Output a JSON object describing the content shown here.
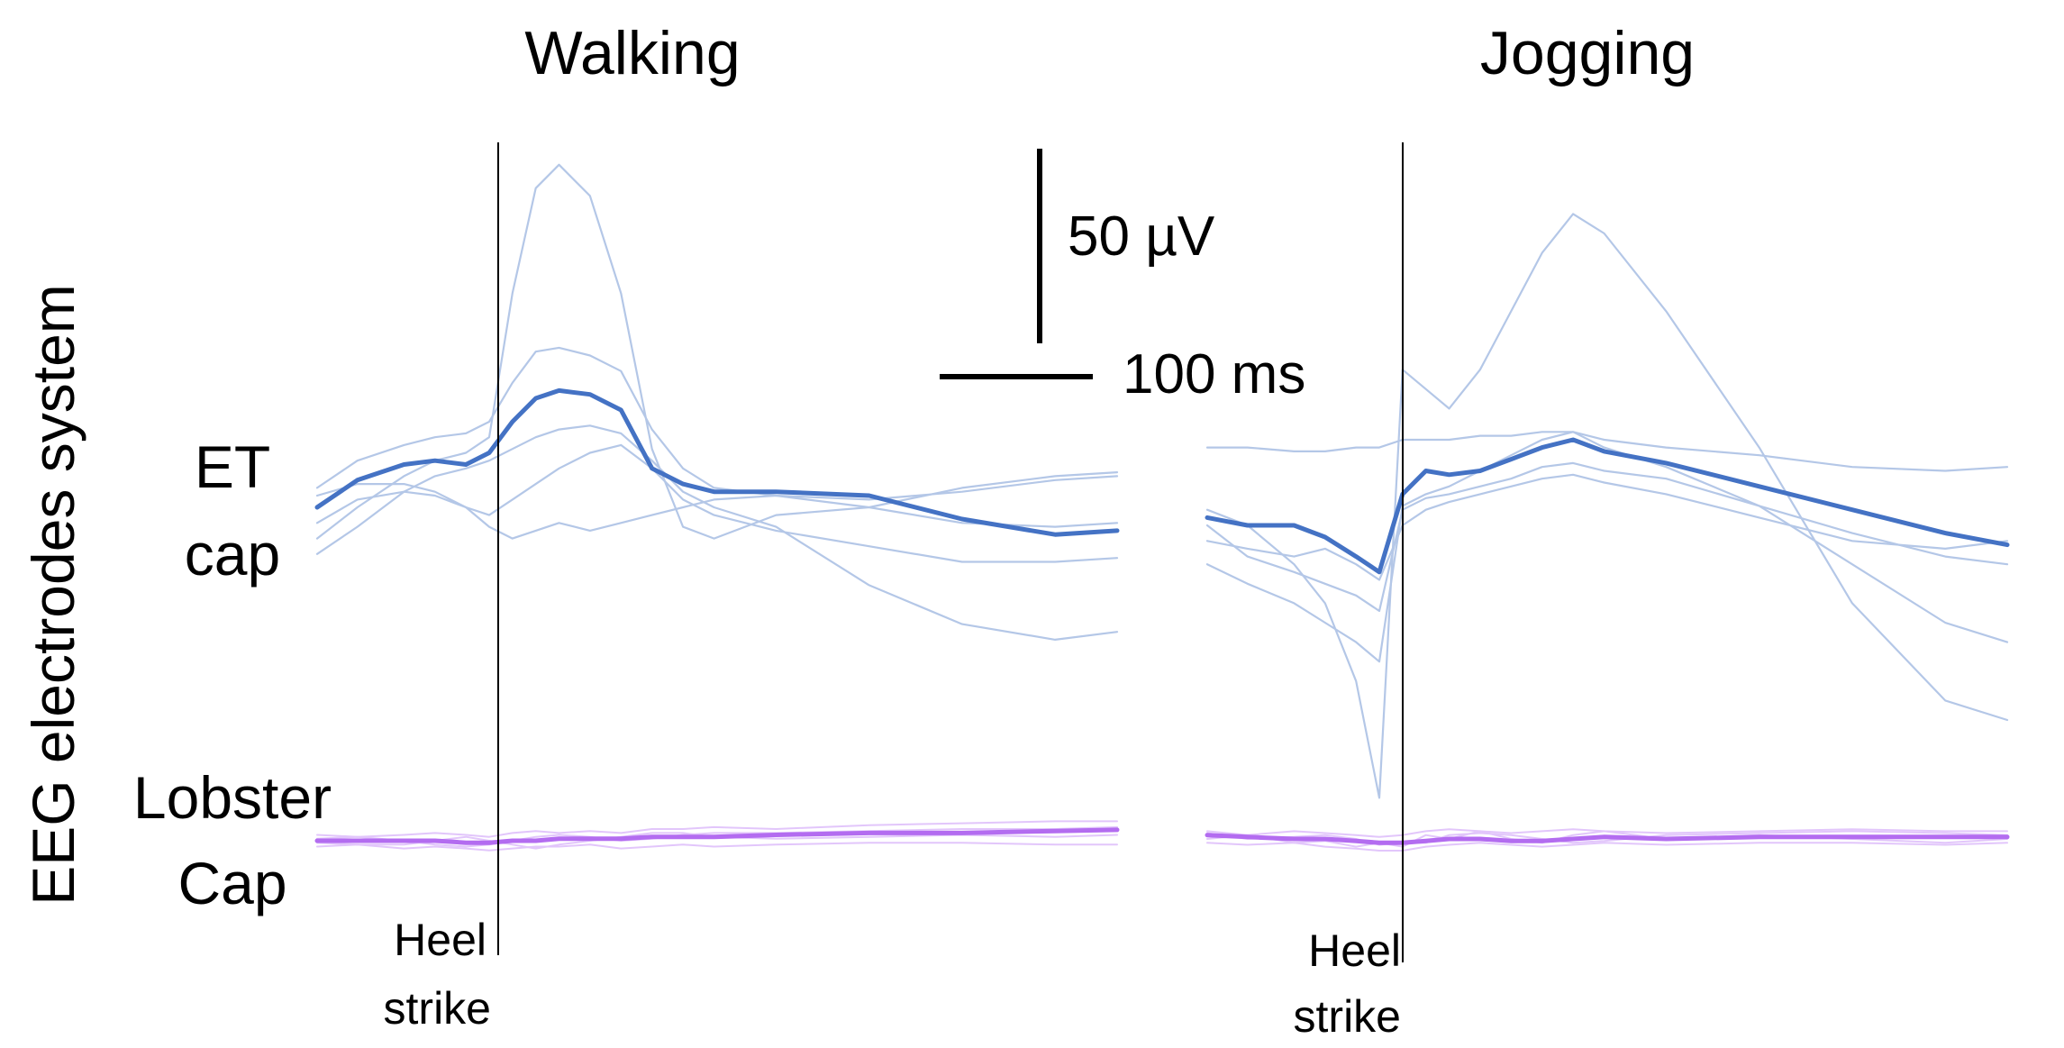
{
  "chart_data": {
    "type": "line",
    "y_axis_label": "EEG electrodes system",
    "row_labels": {
      "et_line1": "ET",
      "et_line2": "cap",
      "lobster_line1": "Lobster",
      "lobster_line2": "Cap"
    },
    "scale_bar": {
      "voltage_label": "50 µV",
      "voltage_uV": 50,
      "time_label": "100 ms",
      "time_ms": 100
    },
    "heel_strike_label": {
      "line1": "Heel",
      "line2": "strike"
    },
    "time_range_ms": [
      -116,
      400
    ],
    "voltage_unit": "µV",
    "colors": {
      "et_mean": "#4472c4",
      "et_trial": "#b4c7e7",
      "lobster_mean": "#b36cf0",
      "lobster_trial": "#e2c6fb",
      "heel_line": "#000000"
    },
    "panels": [
      {
        "title": "Walking",
        "et_cap": {
          "t": [
            -116,
            -90,
            -60,
            -40,
            -20,
            -5,
            10,
            25,
            40,
            60,
            80,
            100,
            120,
            140,
            180,
            240,
            300,
            360,
            400
          ],
          "mean": [
            0,
            7,
            11,
            12,
            11,
            14,
            22,
            28,
            30,
            29,
            25,
            10,
            6,
            4,
            4,
            3,
            -3,
            -7,
            -6
          ],
          "trials": [
            [
              -8,
              0,
              8,
              12,
              14,
              18,
              55,
              82,
              88,
              80,
              55,
              15,
              -5,
              -8,
              -2,
              0,
              5,
              8,
              9
            ],
            [
              5,
              12,
              16,
              18,
              19,
              22,
              32,
              40,
              41,
              39,
              35,
              20,
              10,
              5,
              3,
              2,
              4,
              7,
              8
            ],
            [
              -12,
              -5,
              4,
              8,
              10,
              12,
              15,
              18,
              20,
              21,
              19,
              12,
              4,
              0,
              -5,
              -20,
              -30,
              -34,
              -32
            ],
            [
              3,
              6,
              6,
              4,
              0,
              -2,
              2,
              6,
              10,
              14,
              16,
              10,
              2,
              -2,
              -6,
              -10,
              -14,
              -14,
              -13
            ],
            [
              -4,
              2,
              4,
              3,
              0,
              -5,
              -8,
              -6,
              -4,
              -6,
              -4,
              -2,
              0,
              2,
              3,
              0,
              -4,
              -5,
              -4
            ]
          ]
        },
        "lobster_cap": {
          "mean": [
            0,
            0,
            0,
            0,
            -0.5,
            -0.5,
            0,
            0,
            0.5,
            0.5,
            0.5,
            1,
            1,
            1,
            1.5,
            2,
            2,
            2.5,
            2.8
          ],
          "trials": [
            [
              1.5,
              1,
              1.5,
              2,
              1.5,
              1,
              2,
              2.5,
              2,
              2.5,
              2,
              3,
              3,
              3.5,
              3,
              4,
              4.5,
              5,
              5
            ],
            [
              -1.5,
              -1,
              -2,
              -1.5,
              -2,
              -2.5,
              -2,
              -1.5,
              -1.5,
              -1,
              -2,
              -1.5,
              -1,
              -1.5,
              -1,
              -0.5,
              -0.5,
              -1,
              -1
            ],
            [
              0.5,
              1,
              0,
              -1,
              -1.5,
              -1,
              0,
              1,
              1.5,
              1,
              0,
              0.5,
              1.5,
              2,
              2,
              2.5,
              3,
              3,
              3.5
            ],
            [
              -0.5,
              -1,
              -1,
              0,
              1,
              0,
              -1,
              -2,
              -1,
              0,
              1,
              2,
              2,
              1,
              0.5,
              1,
              1.5,
              1,
              1.5
            ]
          ]
        }
      },
      {
        "title": "Jogging",
        "et_cap": {
          "t": [
            -116,
            -90,
            -60,
            -40,
            -20,
            -5,
            10,
            25,
            40,
            60,
            80,
            100,
            120,
            140,
            180,
            240,
            300,
            360,
            400
          ],
          "mean": [
            2,
            0,
            0,
            -3,
            -8,
            -12,
            8,
            14,
            13,
            14,
            17,
            20,
            22,
            19,
            16,
            10,
            4,
            -2,
            -5
          ],
          "trials": [
            [
              4,
              0,
              -10,
              -20,
              -40,
              -70,
              40,
              35,
              30,
              40,
              55,
              70,
              80,
              75,
              55,
              20,
              -20,
              -45,
              -50
            ],
            [
              20,
              20,
              19,
              19,
              20,
              20,
              22,
              22,
              22,
              23,
              23,
              24,
              24,
              22,
              20,
              18,
              15,
              14,
              15
            ],
            [
              -10,
              -15,
              -20,
              -25,
              -30,
              -35,
              5,
              8,
              10,
              14,
              18,
              22,
              24,
              20,
              15,
              5,
              -10,
              -25,
              -30
            ],
            [
              0,
              -8,
              -12,
              -15,
              -18,
              -22,
              4,
              7,
              8,
              10,
              12,
              15,
              16,
              14,
              12,
              5,
              -2,
              -8,
              -10
            ],
            [
              -4,
              -6,
              -8,
              -6,
              -10,
              -14,
              0,
              4,
              6,
              8,
              10,
              12,
              13,
              11,
              8,
              2,
              -4,
              -6,
              -4
            ]
          ]
        },
        "lobster_cap": {
          "mean": [
            1,
            0.5,
            0,
            0,
            -0.5,
            -1,
            -1,
            -0.5,
            0,
            0,
            -0.5,
            -0.5,
            0,
            0.5,
            0,
            0.5,
            0.5,
            0.5,
            0.5
          ],
          "trials": [
            [
              2,
              1,
              2,
              1.5,
              1,
              0.5,
              1,
              2,
              2.5,
              2,
              1.5,
              2,
              2.5,
              2,
              1.5,
              2,
              2.5,
              2,
              2
            ],
            [
              -1,
              -1.5,
              -1,
              -2,
              -2.5,
              -3,
              -3,
              -2,
              -1.5,
              -1,
              -1.5,
              -2,
              -1.5,
              -1,
              -1.5,
              -1,
              -1,
              -1.5,
              -1
            ],
            [
              0,
              1,
              -1,
              -0.5,
              -2,
              -1,
              -2,
              1,
              0,
              2,
              0,
              -1,
              1,
              2,
              0,
              1,
              0,
              -1,
              0
            ],
            [
              1.5,
              0,
              0.5,
              1,
              0,
              -1.5,
              -1,
              -1,
              1,
              1.5,
              1,
              0,
              -1,
              -0.5,
              1,
              1.5,
              2,
              1.5,
              1
            ]
          ]
        }
      }
    ]
  }
}
